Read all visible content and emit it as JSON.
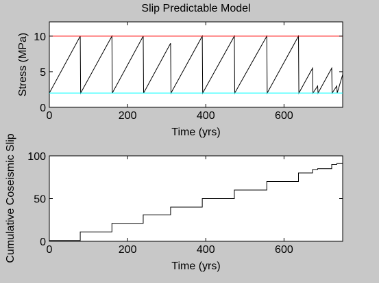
{
  "figure": {
    "background": "#c8c8c8",
    "plot_background": "#ffffff"
  },
  "chart_data": [
    {
      "type": "line",
      "title": "Slip Predictable Model",
      "xlabel": "Time (yrs)",
      "ylabel": "Stress (MPa)",
      "xlim": [
        0,
        750
      ],
      "ylim": [
        0,
        12
      ],
      "xticks": [
        0,
        200,
        400,
        600
      ],
      "yticks": [
        0,
        5,
        10
      ],
      "grid": false,
      "series": [
        {
          "color": "#000000",
          "x": [
            0,
            79,
            80,
            160,
            161,
            240,
            241,
            310,
            311,
            391,
            392,
            473,
            474,
            556,
            557,
            637,
            638,
            673,
            674,
            686,
            687,
            722,
            723,
            735,
            736,
            750
          ],
          "y": [
            2,
            10,
            2,
            10,
            2,
            10,
            2,
            9,
            2,
            10,
            2,
            10,
            2,
            10,
            2,
            10,
            2,
            5.5,
            2,
            3,
            2,
            5.5,
            2,
            3,
            2,
            4.6
          ]
        },
        {
          "color": "#ff0000",
          "x": [
            0,
            750
          ],
          "y": [
            10,
            10
          ]
        },
        {
          "color": "#00ffff",
          "x": [
            0,
            750
          ],
          "y": [
            2,
            2
          ]
        }
      ]
    },
    {
      "type": "line",
      "title": "",
      "xlabel": "Time (yrs)",
      "ylabel": "Cumulative Coseismic Slip",
      "xlim": [
        0,
        750
      ],
      "ylim": [
        0,
        100
      ],
      "xticks": [
        0,
        200,
        400,
        600
      ],
      "yticks": [
        0,
        50,
        100
      ],
      "grid": false,
      "series": [
        {
          "color": "#000000",
          "x": [
            0,
            79,
            79,
            160,
            160,
            240,
            240,
            310,
            310,
            391,
            391,
            473,
            473,
            556,
            556,
            637,
            637,
            673,
            673,
            686,
            686,
            722,
            722,
            735,
            735,
            750
          ],
          "y": [
            1,
            1,
            11,
            11,
            21,
            21,
            31,
            31,
            40,
            40,
            50,
            50,
            60,
            60,
            70,
            70,
            80,
            80,
            84,
            84,
            85,
            85,
            90,
            90,
            91,
            91
          ]
        }
      ]
    }
  ]
}
